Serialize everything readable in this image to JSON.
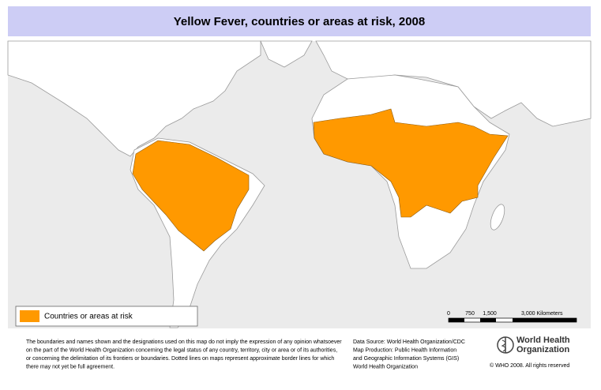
{
  "header": {
    "title": "Yellow Fever, countries or areas at risk, 2008"
  },
  "legend": {
    "label": "Countries or areas at risk"
  },
  "scale": {
    "labels": [
      "0",
      "750",
      "1,500",
      "3,000 Kilometers"
    ]
  },
  "disclaimer": [
    "The boundaries and names shown and the designations used on this map do not imply the expression of any opinion whatsoever",
    "on the part of the World Health Organization concerning the legal status of any country, territory, city or area or of its authorities,",
    "or concerning the delimitation of its frontiers or boundaries.  Dotted lines on maps represent approximate border lines for which",
    "there may not yet be full agreement."
  ],
  "source": [
    "Data Source: World Health Organization/CDC",
    "Map Production: Public Health Information",
    "and Geographic Information Systems (GIS)",
    "World Health Organization"
  ],
  "logo": [
    "World Health",
    "Organization"
  ],
  "copyright": "© WHO 2008. All rights reserved"
}
